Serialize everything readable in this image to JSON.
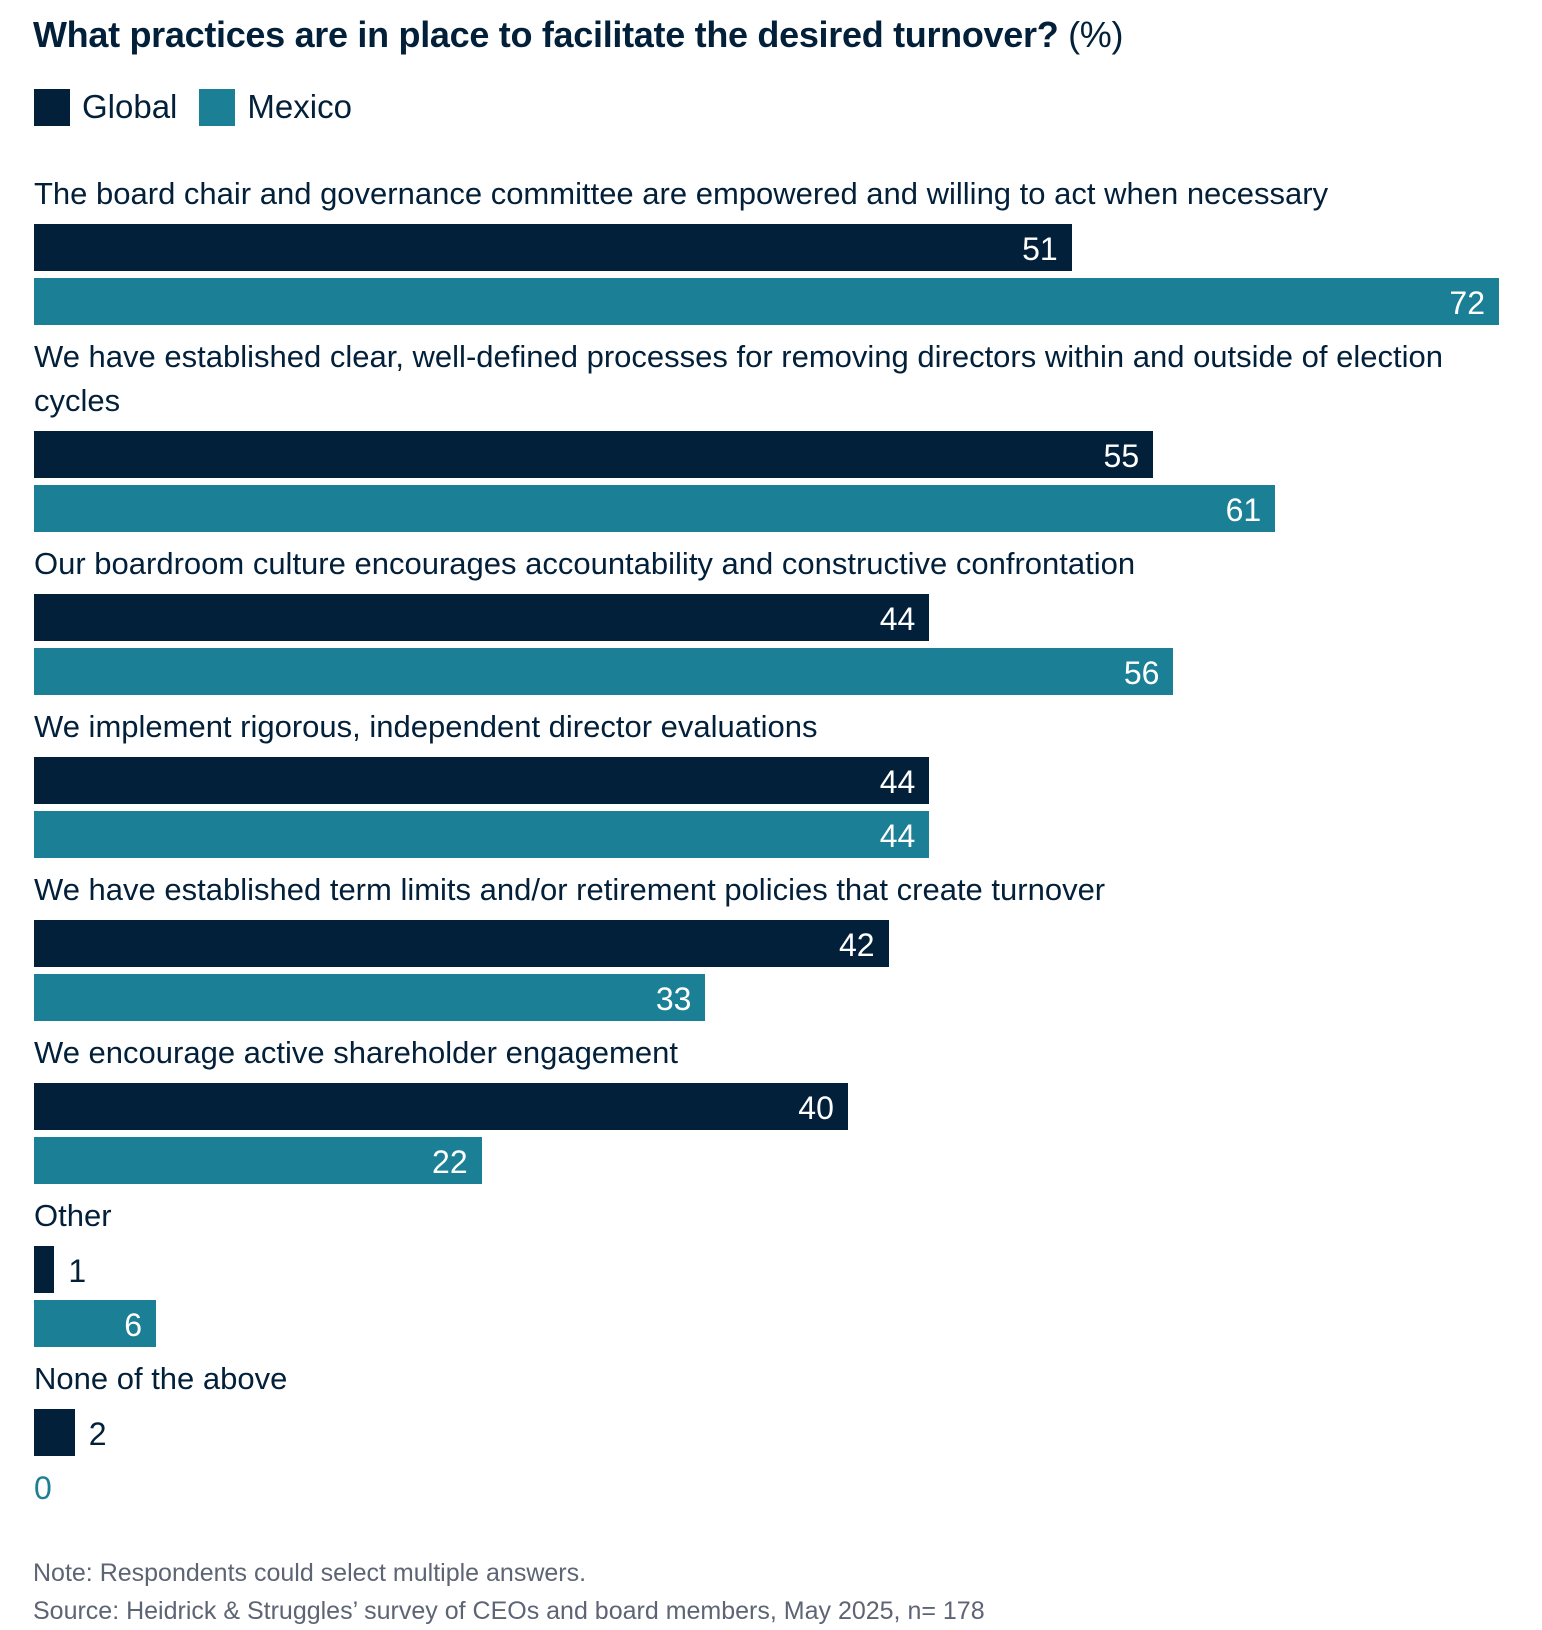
{
  "chart_data": {
    "type": "bar",
    "orientation": "horizontal",
    "title": "What practices are in place to facilitate the desired turnover?",
    "title_unit": "(%)",
    "categories": [
      "The board chair and governance committee are empowered and willing to act when necessary",
      "We have established clear, well-defined processes for removing directors within and outside of election cycles",
      "Our boardroom culture encourages accountability and constructive confrontation",
      "We implement rigorous, independent director evaluations",
      "We have established term limits and/or retirement policies that create turnover",
      "We encourage active shareholder engagement",
      "Other",
      "None of the above"
    ],
    "series": [
      {
        "name": "Global",
        "color": "#03203a",
        "values": [
          51,
          55,
          44,
          44,
          42,
          40,
          1,
          2
        ]
      },
      {
        "name": "Mexico",
        "color": "#1b7f96",
        "values": [
          72,
          61,
          56,
          44,
          33,
          22,
          6,
          0
        ]
      }
    ],
    "xlim": [
      0,
      72
    ],
    "grid": false,
    "legend_position": "top-left",
    "data_labels": true
  },
  "footer": {
    "note": "Note: Respondents could select multiple answers.",
    "source": "Source: Heidrick & Struggles’ survey of CEOs and board members, May 2025, n= 178"
  }
}
